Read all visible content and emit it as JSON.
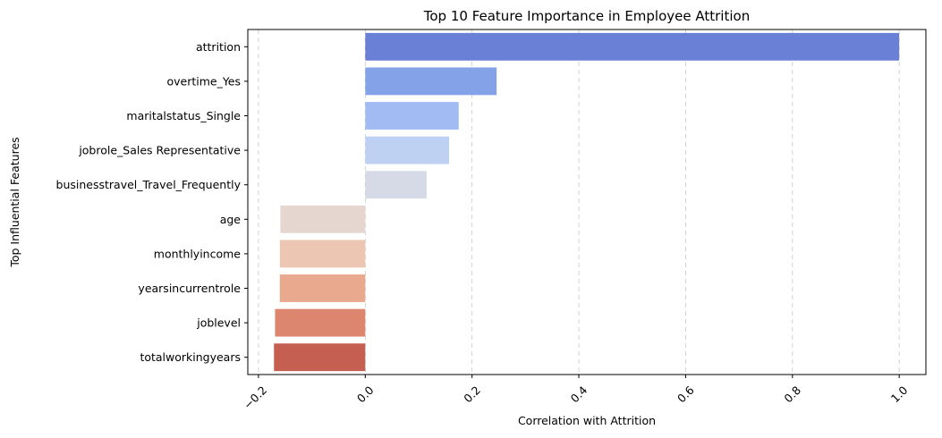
{
  "chart_data": {
    "type": "bar",
    "orientation": "horizontal",
    "title": "Top 10 Feature Importance in Employee Attrition",
    "xlabel": "Correlation with Attrition",
    "ylabel": "Top Influential Features",
    "xlim": [
      -0.22,
      1.05
    ],
    "xticks": [
      -0.2,
      0.0,
      0.2,
      0.4,
      0.6,
      0.8,
      1.0
    ],
    "xtick_labels": [
      "−0.2",
      "0.0",
      "0.2",
      "0.4",
      "0.6",
      "0.8",
      "1.0"
    ],
    "xtick_rotation": 45,
    "grid": "x-dashed",
    "categories": [
      "attrition",
      "overtime_Yes",
      "maritalstatus_Single",
      "jobrole_Sales Representative",
      "businesstravel_Travel_Frequently",
      "age",
      "monthlyincome",
      "yearsincurrentrole",
      "joblevel",
      "totalworkingyears"
    ],
    "values": [
      1.0,
      0.246,
      0.175,
      0.157,
      0.115,
      -0.159,
      -0.16,
      -0.16,
      -0.169,
      -0.171
    ],
    "colors": [
      "#6a7fd6",
      "#84a2e8",
      "#a2bbf3",
      "#bfd1f2",
      "#d5dae6",
      "#e5d7cf",
      "#ecc6b2",
      "#e9a98f",
      "#dc8670",
      "#c55f52"
    ]
  }
}
